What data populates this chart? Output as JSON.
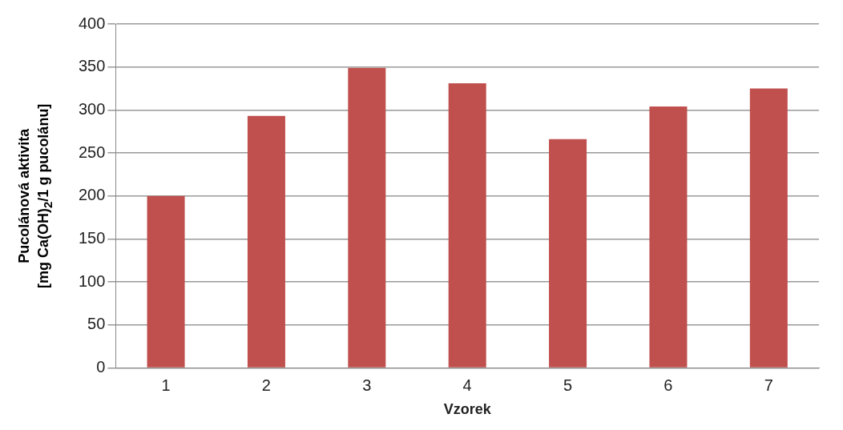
{
  "chart_data": {
    "type": "bar",
    "xlabel": "Vzorek",
    "ylabel": "Pucolánová aktivita [mg Ca(OH)$_{2}$/1 g pucolánu]",
    "categories": [
      "1",
      "2",
      "3",
      "4",
      "5",
      "6",
      "7"
    ],
    "values": [
      200,
      293,
      349,
      331,
      266,
      304,
      325
    ],
    "color": "#c0504d",
    "ylim": [
      0,
      400
    ],
    "yticks": [
      0,
      50,
      100,
      150,
      200,
      250,
      300,
      350,
      400
    ],
    "grid": "y"
  }
}
